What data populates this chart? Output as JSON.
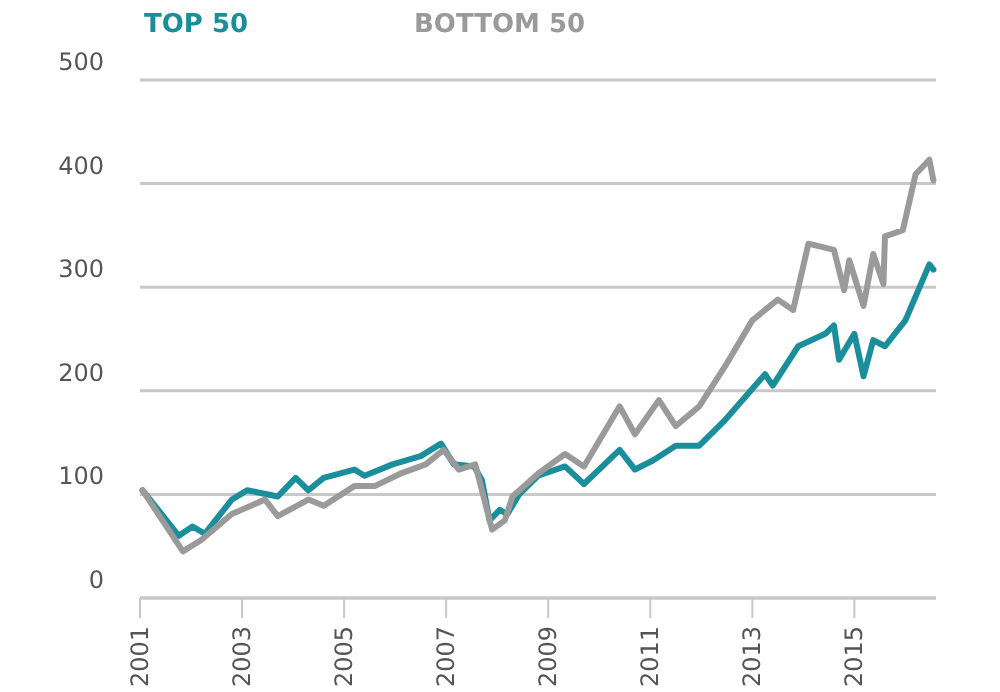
{
  "chart_data": {
    "type": "line",
    "legend": "top left",
    "grid": "y",
    "xlim": [
      2001,
      2016.6
    ],
    "xticks": [
      2001,
      2003,
      2005,
      2007,
      2009,
      2011,
      2013,
      2015
    ],
    "ylim": [
      0,
      500
    ],
    "yticks": [
      0,
      100,
      200,
      300,
      400,
      500
    ],
    "series": [
      {
        "name": "TOP 50",
        "color": "#1a8e9a",
        "x": [
          2001.05,
          2001.76,
          2002.03,
          2002.27,
          2002.8,
          2003.1,
          2003.7,
          2004.05,
          2004.3,
          2004.6,
          2005.2,
          2005.4,
          2005.95,
          2006.5,
          2006.9,
          2007.15,
          2007.55,
          2007.7,
          2007.85,
          2008.05,
          2008.2,
          2008.43,
          2008.8,
          2009.33,
          2009.7,
          2010.4,
          2010.7,
          2011.06,
          2011.5,
          2011.96,
          2012.47,
          2013.25,
          2013.4,
          2013.9,
          2014.43,
          2014.6,
          2014.7,
          2015.0,
          2015.18,
          2015.37,
          2015.6,
          2016.0,
          2016.47,
          2016.55
        ],
        "values": [
          104,
          60,
          69,
          62,
          95,
          104,
          98,
          116,
          104,
          116,
          124,
          118,
          129,
          137,
          149,
          129,
          127,
          114,
          75,
          85,
          81,
          100,
          118,
          127,
          110,
          143,
          124,
          133,
          147,
          147,
          172,
          216,
          205,
          243,
          255,
          263,
          230,
          255,
          214,
          249,
          243,
          268,
          322,
          317
        ]
      },
      {
        "name": "BOTTOM 50",
        "color": "#9a9a9a",
        "x": [
          2001.05,
          2001.84,
          2002.2,
          2002.8,
          2003.45,
          2003.7,
          2004.3,
          2004.6,
          2005.2,
          2005.6,
          2006.1,
          2006.6,
          2006.95,
          2007.25,
          2007.57,
          2007.9,
          2008.15,
          2008.3,
          2008.8,
          2009.33,
          2009.7,
          2010.4,
          2010.7,
          2011.17,
          2011.5,
          2011.96,
          2012.47,
          2013.0,
          2013.5,
          2013.8,
          2014.1,
          2014.6,
          2014.8,
          2014.9,
          2015.18,
          2015.37,
          2015.57,
          2015.6,
          2015.95,
          2016.2,
          2016.47,
          2016.55
        ],
        "values": [
          104,
          45,
          56,
          81,
          95,
          79,
          95,
          89,
          108,
          108,
          120,
          129,
          143,
          124,
          129,
          66,
          75,
          98,
          120,
          139,
          127,
          185,
          158,
          191,
          166,
          185,
          224,
          268,
          288,
          278,
          342,
          336,
          297,
          326,
          282,
          332,
          303,
          349,
          355,
          409,
          423,
          403
        ]
      }
    ]
  }
}
